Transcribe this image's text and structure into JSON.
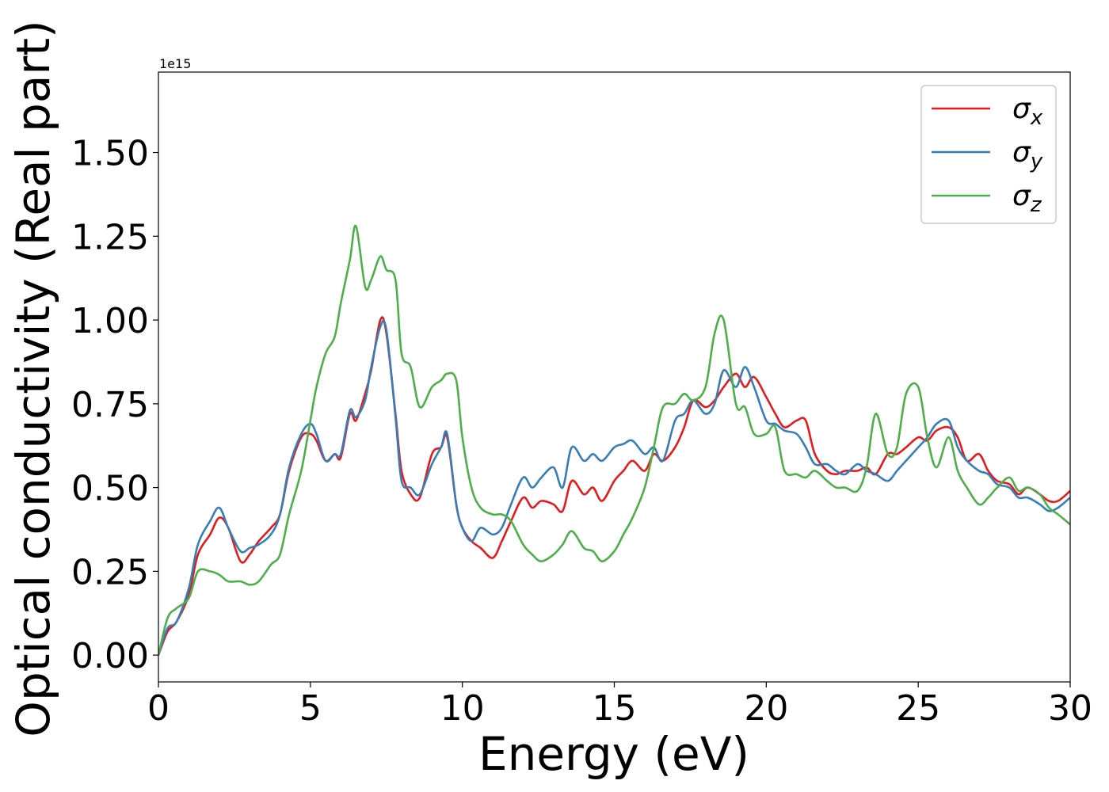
{
  "chart_data": {
    "type": "line",
    "xlabel": "Energy (eV)",
    "ylabel": "Optical conductivity (Real part)",
    "y_offset_text": "1e15",
    "y_scale_factor": 1000000000000000.0,
    "xlim": [
      0,
      30
    ],
    "ylim": [
      -0.08,
      1.74
    ],
    "x_ticks": [
      0,
      5,
      10,
      15,
      20,
      25,
      30
    ],
    "x_tick_labels": [
      "0",
      "5",
      "10",
      "15",
      "20",
      "25",
      "30"
    ],
    "y_ticks": [
      0.0,
      0.25,
      0.5,
      0.75,
      1.0,
      1.25,
      1.5
    ],
    "y_tick_labels": [
      "0.00",
      "0.25",
      "0.50",
      "0.75",
      "1.00",
      "1.25",
      "1.50"
    ],
    "grid": false,
    "legend_position": "top-right",
    "series": [
      {
        "name": "σx",
        "symbol": "σ",
        "subscript": "x",
        "color": "#e41a1c",
        "x": [
          0,
          0.3,
          0.6,
          1.0,
          1.3,
          1.7,
          2.0,
          2.3,
          2.7,
          3.0,
          3.3,
          3.7,
          4.0,
          4.3,
          4.7,
          5.0,
          5.2,
          5.5,
          5.8,
          6.0,
          6.3,
          6.5,
          6.8,
          7.0,
          7.3,
          7.5,
          7.8,
          8.0,
          8.3,
          8.6,
          9.0,
          9.3,
          9.5,
          9.8,
          10.0,
          10.3,
          10.6,
          11.0,
          11.3,
          11.6,
          12.0,
          12.3,
          12.6,
          13.0,
          13.3,
          13.6,
          14.0,
          14.3,
          14.6,
          15.0,
          15.3,
          15.6,
          16.0,
          16.3,
          16.6,
          17.0,
          17.3,
          17.6,
          18.0,
          18.3,
          18.6,
          19.0,
          19.3,
          19.6,
          20.0,
          20.3,
          20.6,
          21.0,
          21.3,
          21.6,
          22.0,
          22.3,
          22.6,
          23.0,
          23.3,
          23.6,
          24.0,
          24.3,
          24.6,
          25.0,
          25.3,
          25.6,
          26.0,
          26.3,
          26.6,
          27.0,
          27.3,
          27.6,
          28.0,
          28.3,
          28.6,
          29.0,
          29.3,
          29.6,
          30.0
        ],
        "y": [
          0.0,
          0.07,
          0.1,
          0.18,
          0.3,
          0.36,
          0.41,
          0.38,
          0.28,
          0.3,
          0.34,
          0.38,
          0.42,
          0.55,
          0.65,
          0.66,
          0.64,
          0.58,
          0.6,
          0.59,
          0.72,
          0.7,
          0.78,
          0.85,
          1.0,
          0.96,
          0.72,
          0.55,
          0.48,
          0.47,
          0.6,
          0.62,
          0.65,
          0.45,
          0.38,
          0.34,
          0.32,
          0.29,
          0.34,
          0.4,
          0.47,
          0.44,
          0.46,
          0.45,
          0.43,
          0.52,
          0.48,
          0.5,
          0.46,
          0.52,
          0.55,
          0.58,
          0.55,
          0.6,
          0.58,
          0.62,
          0.68,
          0.76,
          0.74,
          0.76,
          0.8,
          0.84,
          0.8,
          0.83,
          0.77,
          0.72,
          0.68,
          0.7,
          0.7,
          0.6,
          0.55,
          0.54,
          0.55,
          0.55,
          0.56,
          0.54,
          0.6,
          0.6,
          0.62,
          0.65,
          0.64,
          0.67,
          0.68,
          0.65,
          0.58,
          0.6,
          0.55,
          0.52,
          0.51,
          0.48,
          0.5,
          0.48,
          0.46,
          0.46,
          0.49
        ]
      },
      {
        "name": "σy",
        "symbol": "σ",
        "subscript": "y",
        "color": "#377eb8",
        "x": [
          0,
          0.3,
          0.6,
          1.0,
          1.3,
          1.7,
          2.0,
          2.3,
          2.7,
          3.0,
          3.3,
          3.7,
          4.0,
          4.3,
          4.7,
          5.0,
          5.2,
          5.5,
          5.8,
          6.0,
          6.3,
          6.5,
          6.8,
          7.0,
          7.3,
          7.5,
          7.8,
          8.0,
          8.3,
          8.6,
          9.0,
          9.3,
          9.5,
          9.8,
          10.0,
          10.3,
          10.6,
          11.0,
          11.3,
          11.6,
          12.0,
          12.3,
          12.6,
          13.0,
          13.3,
          13.6,
          14.0,
          14.3,
          14.6,
          15.0,
          15.3,
          15.6,
          16.0,
          16.3,
          16.6,
          17.0,
          17.3,
          17.6,
          18.0,
          18.3,
          18.6,
          19.0,
          19.3,
          19.6,
          20.0,
          20.3,
          20.6,
          21.0,
          21.3,
          21.6,
          22.0,
          22.3,
          22.6,
          23.0,
          23.3,
          23.6,
          24.0,
          24.3,
          24.6,
          25.0,
          25.3,
          25.6,
          26.0,
          26.3,
          26.6,
          27.0,
          27.3,
          27.6,
          28.0,
          28.3,
          28.6,
          29.0,
          29.3,
          29.6,
          30.0
        ],
        "y": [
          0.0,
          0.08,
          0.1,
          0.2,
          0.33,
          0.4,
          0.44,
          0.38,
          0.31,
          0.32,
          0.33,
          0.36,
          0.42,
          0.56,
          0.66,
          0.69,
          0.66,
          0.58,
          0.6,
          0.6,
          0.73,
          0.71,
          0.76,
          0.86,
          0.98,
          0.97,
          0.71,
          0.52,
          0.5,
          0.48,
          0.57,
          0.62,
          0.66,
          0.45,
          0.38,
          0.34,
          0.38,
          0.36,
          0.38,
          0.45,
          0.53,
          0.5,
          0.53,
          0.56,
          0.5,
          0.62,
          0.58,
          0.6,
          0.58,
          0.62,
          0.63,
          0.64,
          0.6,
          0.62,
          0.58,
          0.7,
          0.72,
          0.76,
          0.72,
          0.75,
          0.85,
          0.8,
          0.86,
          0.8,
          0.7,
          0.69,
          0.67,
          0.66,
          0.62,
          0.57,
          0.57,
          0.55,
          0.54,
          0.57,
          0.55,
          0.54,
          0.52,
          0.55,
          0.58,
          0.62,
          0.65,
          0.69,
          0.7,
          0.62,
          0.58,
          0.55,
          0.54,
          0.51,
          0.5,
          0.47,
          0.47,
          0.45,
          0.43,
          0.44,
          0.47
        ]
      },
      {
        "name": "σz",
        "symbol": "σ",
        "subscript": "z",
        "color": "#4daf4a",
        "x": [
          0,
          0.3,
          0.6,
          1.0,
          1.3,
          1.7,
          2.0,
          2.3,
          2.7,
          3.0,
          3.3,
          3.7,
          4.0,
          4.3,
          4.7,
          5.0,
          5.2,
          5.5,
          5.8,
          6.0,
          6.3,
          6.5,
          6.8,
          7.0,
          7.3,
          7.5,
          7.8,
          8.0,
          8.3,
          8.6,
          9.0,
          9.3,
          9.5,
          9.8,
          10.0,
          10.3,
          10.6,
          11.0,
          11.3,
          11.6,
          12.0,
          12.3,
          12.6,
          13.0,
          13.3,
          13.6,
          14.0,
          14.3,
          14.6,
          15.0,
          15.3,
          15.6,
          16.0,
          16.3,
          16.6,
          17.0,
          17.3,
          17.6,
          18.0,
          18.3,
          18.6,
          19.0,
          19.3,
          19.6,
          20.0,
          20.3,
          20.6,
          21.0,
          21.3,
          21.6,
          22.0,
          22.3,
          22.6,
          23.0,
          23.3,
          23.6,
          24.0,
          24.3,
          24.6,
          25.0,
          25.3,
          25.6,
          26.0,
          26.3,
          26.6,
          27.0,
          27.3,
          27.6,
          28.0,
          28.3,
          28.6,
          29.0,
          29.3,
          29.6,
          30.0
        ],
        "y": [
          0.0,
          0.11,
          0.14,
          0.17,
          0.25,
          0.25,
          0.24,
          0.22,
          0.22,
          0.21,
          0.22,
          0.27,
          0.3,
          0.42,
          0.55,
          0.7,
          0.8,
          0.9,
          0.95,
          1.05,
          1.18,
          1.28,
          1.1,
          1.12,
          1.19,
          1.15,
          1.12,
          0.9,
          0.86,
          0.74,
          0.8,
          0.82,
          0.84,
          0.82,
          0.65,
          0.5,
          0.44,
          0.42,
          0.42,
          0.4,
          0.33,
          0.3,
          0.28,
          0.3,
          0.33,
          0.37,
          0.32,
          0.31,
          0.28,
          0.31,
          0.36,
          0.41,
          0.5,
          0.62,
          0.74,
          0.75,
          0.78,
          0.76,
          0.8,
          0.96,
          1.0,
          0.75,
          0.74,
          0.66,
          0.66,
          0.68,
          0.55,
          0.54,
          0.53,
          0.55,
          0.52,
          0.5,
          0.5,
          0.49,
          0.56,
          0.72,
          0.6,
          0.62,
          0.78,
          0.8,
          0.65,
          0.56,
          0.65,
          0.55,
          0.5,
          0.45,
          0.47,
          0.5,
          0.53,
          0.49,
          0.5,
          0.48,
          0.44,
          0.42,
          0.39
        ]
      }
    ]
  }
}
